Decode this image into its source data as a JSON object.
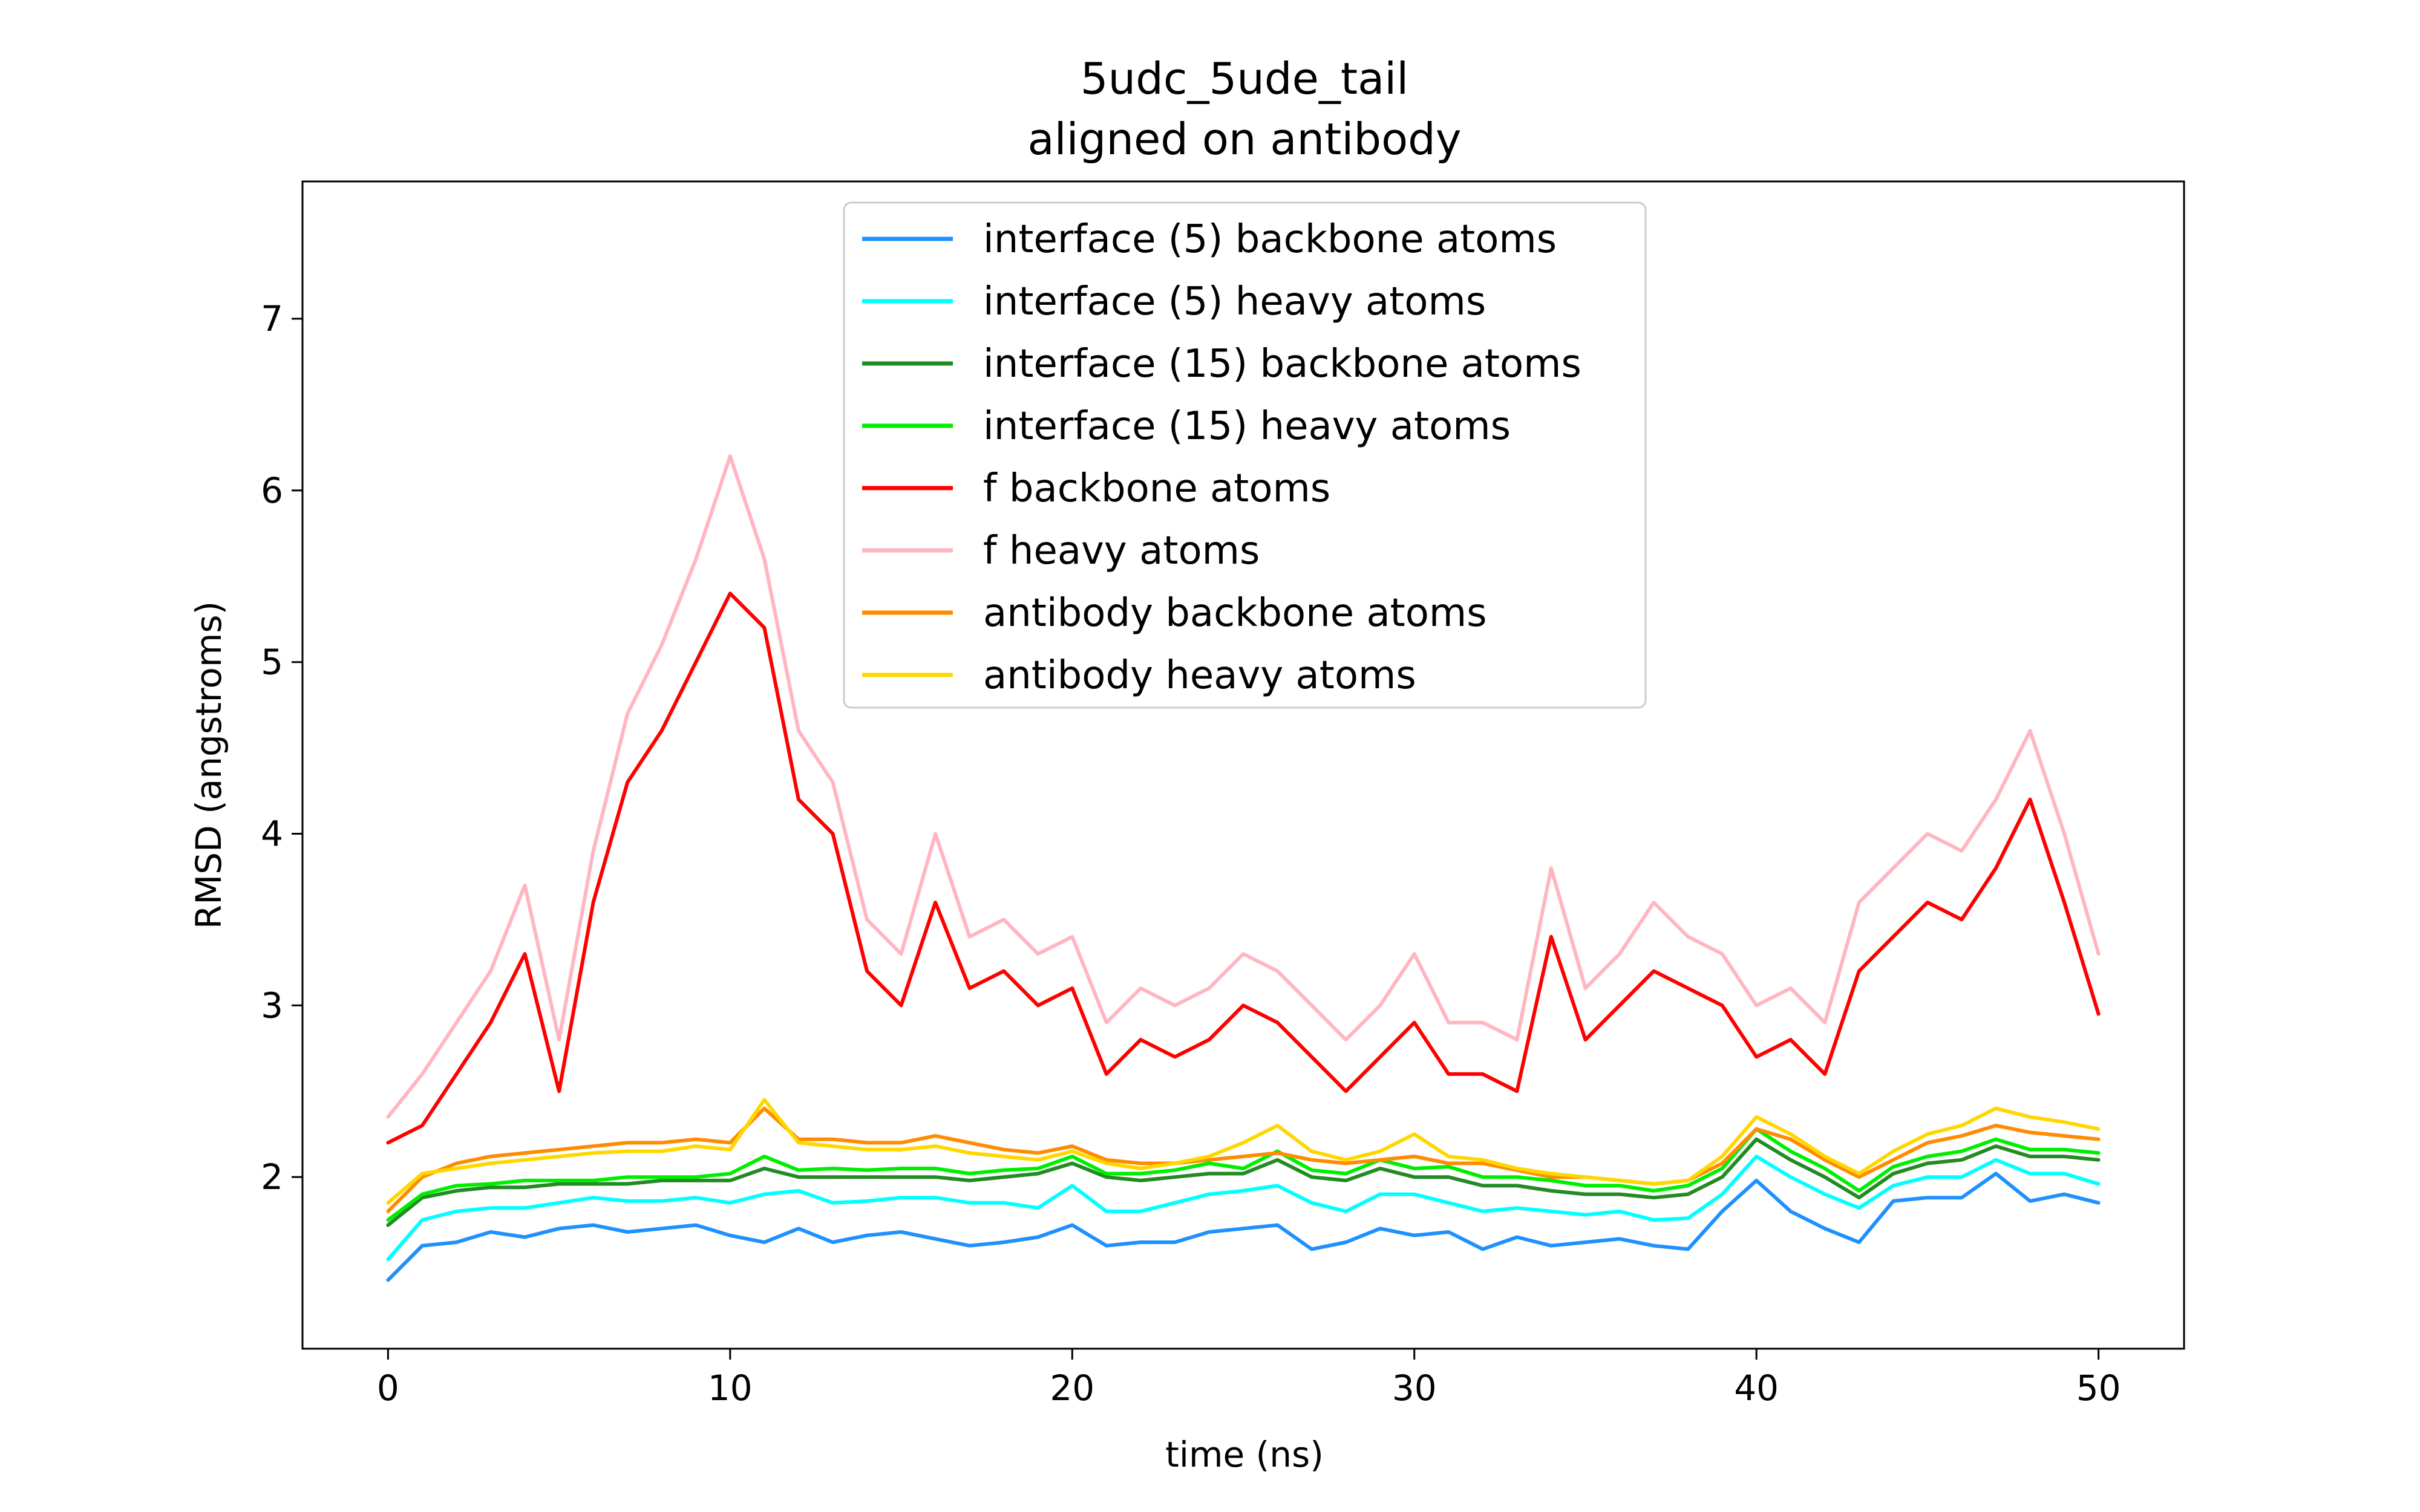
{
  "chart_data": {
    "type": "line",
    "title": "5udc_5ude_tail",
    "subtitle": "aligned on antibody",
    "xlabel": "time (ns)",
    "ylabel": "RMSD (angstroms)",
    "xlim": [
      -2.5,
      52.5
    ],
    "ylim": [
      1.0,
      7.8
    ],
    "xticks": [
      0,
      10,
      20,
      30,
      40,
      50
    ],
    "yticks": [
      2,
      3,
      4,
      5,
      6,
      7
    ],
    "grid": false,
    "legend_position": "upper center",
    "x_start": 0,
    "x_step": 1,
    "series": [
      {
        "name": "interface (5) backbone atoms",
        "color": "#1e90ff",
        "values": [
          1.4,
          1.6,
          1.62,
          1.68,
          1.65,
          1.7,
          1.72,
          1.68,
          1.7,
          1.72,
          1.66,
          1.62,
          1.7,
          1.62,
          1.66,
          1.68,
          1.64,
          1.6,
          1.62,
          1.65,
          1.72,
          1.6,
          1.62,
          1.62,
          1.68,
          1.7,
          1.72,
          1.58,
          1.62,
          1.7,
          1.66,
          1.68,
          1.58,
          1.65,
          1.6,
          1.62,
          1.64,
          1.6,
          1.58,
          1.8,
          1.98,
          1.8,
          1.7,
          1.62,
          1.86,
          1.88,
          1.88,
          2.02,
          1.86,
          1.9,
          1.85
        ]
      },
      {
        "name": "interface (5) heavy atoms",
        "color": "#00ffff",
        "values": [
          1.52,
          1.75,
          1.8,
          1.82,
          1.82,
          1.85,
          1.88,
          1.86,
          1.86,
          1.88,
          1.85,
          1.9,
          1.92,
          1.85,
          1.86,
          1.88,
          1.88,
          1.85,
          1.85,
          1.82,
          1.95,
          1.8,
          1.8,
          1.85,
          1.9,
          1.92,
          1.95,
          1.85,
          1.8,
          1.9,
          1.9,
          1.85,
          1.8,
          1.82,
          1.8,
          1.78,
          1.8,
          1.75,
          1.76,
          1.9,
          2.12,
          2.0,
          1.9,
          1.82,
          1.95,
          2.0,
          2.0,
          2.1,
          2.02,
          2.02,
          1.96
        ]
      },
      {
        "name": "interface (15) backbone atoms",
        "color": "#228b22",
        "values": [
          1.72,
          1.88,
          1.92,
          1.94,
          1.94,
          1.96,
          1.96,
          1.96,
          1.98,
          1.98,
          1.98,
          2.05,
          2.0,
          2.0,
          2.0,
          2.0,
          2.0,
          1.98,
          2.0,
          2.02,
          2.08,
          2.0,
          1.98,
          2.0,
          2.02,
          2.02,
          2.1,
          2.0,
          1.98,
          2.05,
          2.0,
          2.0,
          1.95,
          1.95,
          1.92,
          1.9,
          1.9,
          1.88,
          1.9,
          2.0,
          2.22,
          2.1,
          2.0,
          1.88,
          2.02,
          2.08,
          2.1,
          2.18,
          2.12,
          2.12,
          2.1
        ]
      },
      {
        "name": "interface (15) heavy atoms",
        "color": "#00ee00",
        "values": [
          1.75,
          1.9,
          1.95,
          1.96,
          1.98,
          1.98,
          1.98,
          2.0,
          2.0,
          2.0,
          2.02,
          2.12,
          2.04,
          2.05,
          2.04,
          2.05,
          2.05,
          2.02,
          2.04,
          2.05,
          2.12,
          2.02,
          2.02,
          2.04,
          2.08,
          2.05,
          2.15,
          2.04,
          2.02,
          2.1,
          2.05,
          2.06,
          2.0,
          2.0,
          1.98,
          1.95,
          1.95,
          1.92,
          1.95,
          2.05,
          2.28,
          2.15,
          2.05,
          1.92,
          2.06,
          2.12,
          2.15,
          2.22,
          2.16,
          2.16,
          2.14
        ]
      },
      {
        "name": "f backbone atoms",
        "color": "#ff0000",
        "values": [
          2.2,
          2.3,
          2.6,
          2.9,
          3.3,
          2.5,
          3.6,
          4.3,
          4.6,
          5.0,
          5.4,
          5.2,
          4.2,
          4.0,
          3.2,
          3.0,
          3.6,
          3.1,
          3.2,
          3.0,
          3.1,
          2.6,
          2.8,
          2.7,
          2.8,
          3.0,
          2.9,
          2.7,
          2.5,
          2.7,
          2.9,
          2.6,
          2.6,
          2.5,
          3.4,
          2.8,
          3.0,
          3.2,
          3.1,
          3.0,
          2.7,
          2.8,
          2.6,
          3.2,
          3.4,
          3.6,
          3.5,
          3.8,
          4.2,
          3.6,
          2.95
        ]
      },
      {
        "name": "f heavy atoms",
        "color": "#ffb6c1",
        "values": [
          2.35,
          2.6,
          2.9,
          3.2,
          3.7,
          2.8,
          3.9,
          4.7,
          5.1,
          5.6,
          6.2,
          5.6,
          4.6,
          4.3,
          3.5,
          3.3,
          4.0,
          3.4,
          3.5,
          3.3,
          3.4,
          2.9,
          3.1,
          3.0,
          3.1,
          3.3,
          3.2,
          3.0,
          2.8,
          3.0,
          3.3,
          2.9,
          2.9,
          2.8,
          3.8,
          3.1,
          3.3,
          3.6,
          3.4,
          3.3,
          3.0,
          3.1,
          2.9,
          3.6,
          3.8,
          4.0,
          3.9,
          4.2,
          4.6,
          4.0,
          3.3
        ]
      },
      {
        "name": "antibody backbone atoms",
        "color": "#ff8c00",
        "values": [
          1.8,
          2.0,
          2.08,
          2.12,
          2.14,
          2.16,
          2.18,
          2.2,
          2.2,
          2.22,
          2.2,
          2.4,
          2.22,
          2.22,
          2.2,
          2.2,
          2.24,
          2.2,
          2.16,
          2.14,
          2.18,
          2.1,
          2.08,
          2.08,
          2.1,
          2.12,
          2.14,
          2.1,
          2.08,
          2.1,
          2.12,
          2.08,
          2.08,
          2.04,
          2.0,
          2.0,
          1.98,
          1.96,
          1.98,
          2.08,
          2.28,
          2.22,
          2.1,
          2.0,
          2.1,
          2.2,
          2.24,
          2.3,
          2.26,
          2.24,
          2.22
        ]
      },
      {
        "name": "antibody heavy atoms",
        "color": "#ffd700",
        "values": [
          1.85,
          2.02,
          2.05,
          2.08,
          2.1,
          2.12,
          2.14,
          2.15,
          2.15,
          2.18,
          2.16,
          2.45,
          2.2,
          2.18,
          2.16,
          2.16,
          2.18,
          2.14,
          2.12,
          2.1,
          2.15,
          2.08,
          2.05,
          2.08,
          2.12,
          2.2,
          2.3,
          2.15,
          2.1,
          2.15,
          2.25,
          2.12,
          2.1,
          2.05,
          2.02,
          2.0,
          1.98,
          1.96,
          1.98,
          2.12,
          2.35,
          2.25,
          2.12,
          2.02,
          2.15,
          2.25,
          2.3,
          2.4,
          2.35,
          2.32,
          2.28
        ]
      }
    ]
  }
}
